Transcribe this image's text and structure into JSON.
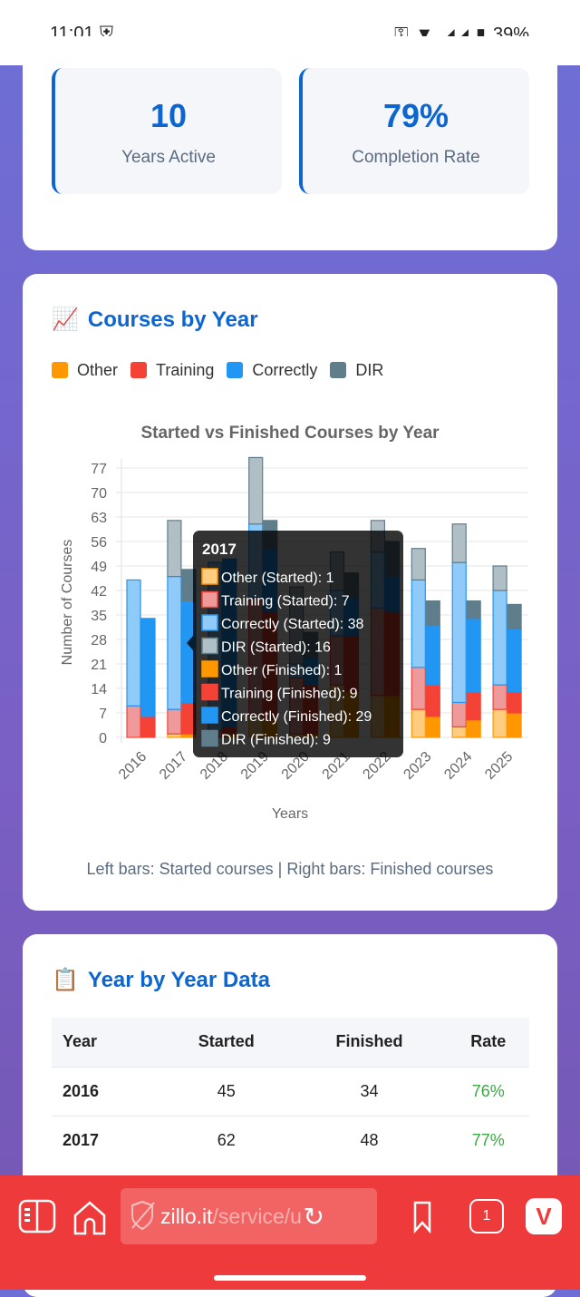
{
  "status_bar": {
    "time": "11:01",
    "battery": "39%"
  },
  "stats": [
    {
      "value": "10",
      "label": "Years Active"
    },
    {
      "value": "79%",
      "label": "Completion Rate"
    }
  ],
  "courses_section": {
    "emoji": "📈",
    "title": "Courses by Year",
    "note": "Left bars: Started courses | Right bars: Finished courses"
  },
  "legend": [
    {
      "label": "Other",
      "color": "#ff9800"
    },
    {
      "label": "Training",
      "color": "#f44336"
    },
    {
      "label": "Correctly",
      "color": "#2196f3"
    },
    {
      "label": "DIR",
      "color": "#607d8b"
    }
  ],
  "chart_data": {
    "type": "bar",
    "stacked": true,
    "title": "Started vs Finished Courses by Year",
    "xlabel": "Years",
    "ylabel": "Number of Courses",
    "ylim": [
      0,
      77
    ],
    "yticks": [
      0,
      7,
      14,
      21,
      28,
      35,
      42,
      49,
      56,
      63,
      70,
      77
    ],
    "categories": [
      "2016",
      "2017",
      "2018",
      "2019",
      "2020",
      "2021",
      "2022",
      "2023",
      "2024",
      "2025"
    ],
    "series": [
      {
        "name": "Other (Started)",
        "stack": "started",
        "color": "#ffcc80",
        "border": "#ff9800",
        "values": [
          0,
          1,
          0,
          6,
          1,
          15,
          12,
          8,
          3,
          8
        ]
      },
      {
        "name": "Training (Started)",
        "stack": "started",
        "color": "#ef9a9a",
        "border": "#f44336",
        "values": [
          9,
          7,
          2,
          34,
          16,
          14,
          25,
          12,
          7,
          7
        ]
      },
      {
        "name": "Correctly (Started)",
        "stack": "started",
        "color": "#90caf9",
        "border": "#2196f3",
        "values": [
          36,
          38,
          48,
          21,
          4,
          13,
          16,
          25,
          40,
          27
        ]
      },
      {
        "name": "DIR (Started)",
        "stack": "started",
        "color": "#b0bec5",
        "border": "#607d8b",
        "values": [
          0,
          16,
          0,
          19,
          22,
          11,
          9,
          9,
          11,
          7
        ]
      },
      {
        "name": "Other (Finished)",
        "stack": "finished",
        "color": "#ff9800",
        "border": "#ff9800",
        "values": [
          0,
          1,
          1,
          5,
          1,
          13,
          12,
          6,
          5,
          7
        ]
      },
      {
        "name": "Training (Finished)",
        "stack": "finished",
        "color": "#f44336",
        "border": "#f44336",
        "values": [
          6,
          9,
          2,
          31,
          14,
          16,
          24,
          9,
          8,
          6
        ]
      },
      {
        "name": "Correctly (Finished)",
        "stack": "finished",
        "color": "#2196f3",
        "border": "#2196f3",
        "values": [
          28,
          29,
          48,
          18,
          8,
          11,
          10,
          17,
          21,
          18
        ]
      },
      {
        "name": "DIR (Finished)",
        "stack": "finished",
        "color": "#607d8b",
        "border": "#607d8b",
        "values": [
          0,
          9,
          0,
          8,
          7,
          7,
          10,
          7,
          5,
          7
        ]
      }
    ],
    "tooltip": {
      "title": "2017",
      "items": [
        "Other (Started): 1",
        "Training (Started): 7",
        "Correctly (Started): 38",
        "DIR (Started): 16",
        "Other (Finished): 1",
        "Training (Finished): 9",
        "Correctly (Finished): 29",
        "DIR (Finished): 9"
      ]
    }
  },
  "table_section": {
    "emoji": "📋",
    "title": "Year by Year Data",
    "headers": [
      "Year",
      "Started",
      "Finished",
      "Rate"
    ],
    "rows": [
      [
        "2016",
        "45",
        "34",
        "76%"
      ],
      [
        "2017",
        "62",
        "48",
        "77%"
      ]
    ]
  },
  "browser": {
    "url_domain": "zillo.it",
    "url_path": "/service/u",
    "tab_count": "1"
  }
}
